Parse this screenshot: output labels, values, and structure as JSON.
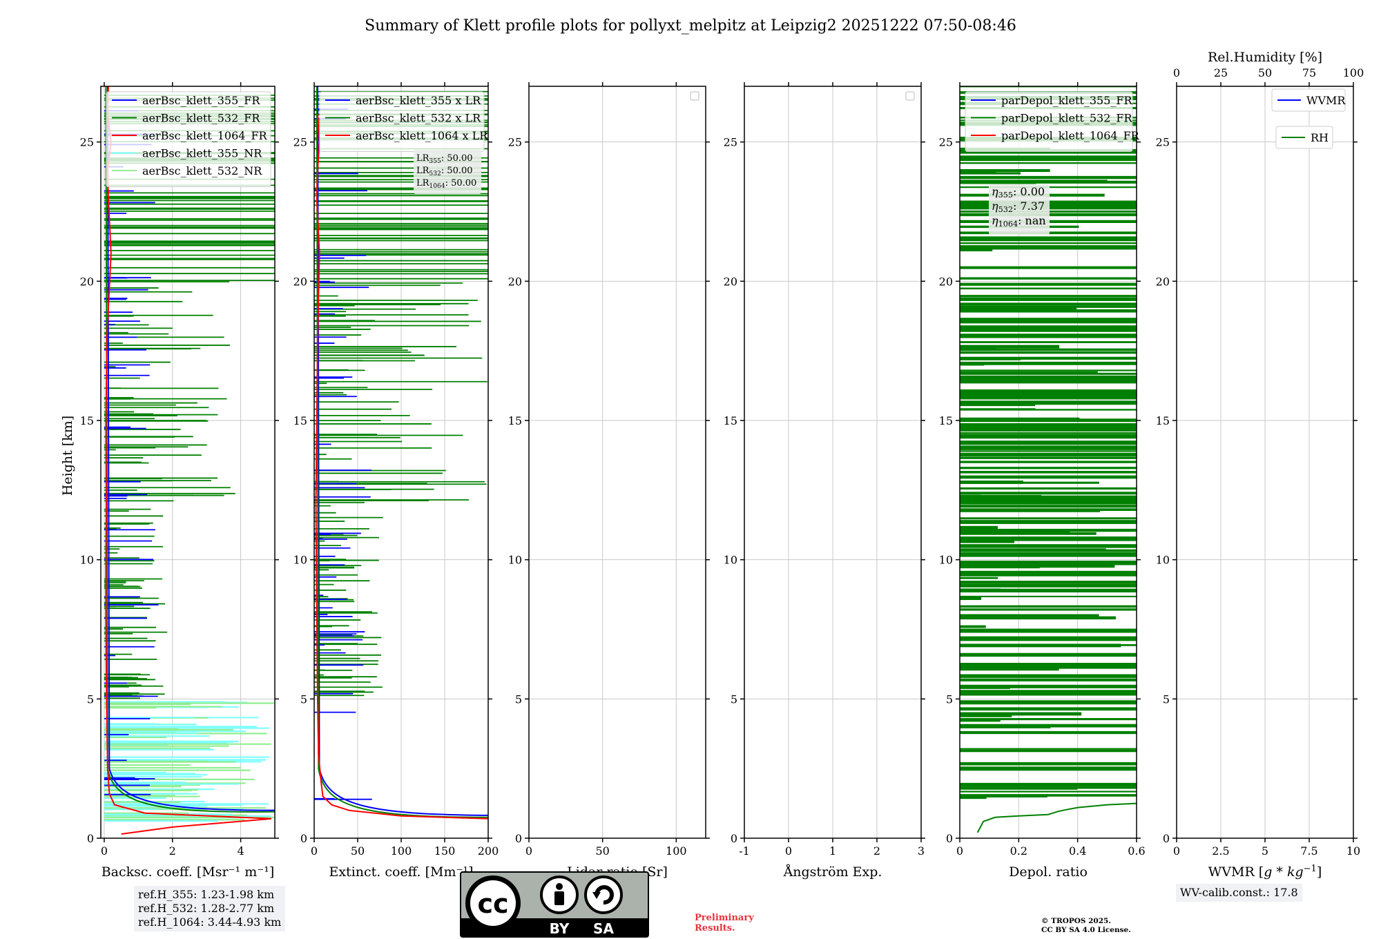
{
  "title": "Summary of Klett profile plots for pollyxt_melpitz at Leipzig2 20251222 07:50-08:46",
  "colors": {
    "blue": "#0000ff",
    "green": "#008000",
    "red": "#ff0000",
    "lightgreen": "#90ee90",
    "cyan": "#80ffff",
    "grid": "#c8c8c8",
    "prelim": "#e8323c"
  },
  "chart_data": [
    {
      "id": "backscatter",
      "type": "line",
      "xlabel": "Backsc. coeff. [Msr⁻¹ m⁻¹]",
      "ylabel": "Height [km]",
      "xlim": [
        -0.1,
        5
      ],
      "ylim": [
        0,
        27
      ],
      "xticks": [
        0,
        2,
        4
      ],
      "yticks": [
        0,
        5,
        10,
        15,
        20,
        25
      ],
      "grid": true,
      "legend": {
        "placement": "top-right",
        "entries": [
          {
            "label": "aerBsc_klett_355_FR",
            "color": "#0000ff"
          },
          {
            "label": "aerBsc_klett_532_FR",
            "color": "#008000"
          },
          {
            "label": "aerBsc_klett_1064_FR",
            "color": "#ff0000"
          },
          {
            "label": "aerBsc_klett_355_NR",
            "color": "#80ffff"
          },
          {
            "label": "aerBsc_klett_532_NR",
            "color": "#90ee90"
          }
        ]
      },
      "series": [
        {
          "name": "aerBsc_klett_1064_FR",
          "x": [
            0.5,
            2.0,
            4.9,
            1.2,
            0.3,
            0.15,
            0.1,
            0.08,
            0.06,
            0.05,
            0.05,
            0.06,
            0.05,
            0.08,
            0.2,
            0.12,
            0.1,
            0.2,
            0.1,
            0.12
          ],
          "y": [
            0.15,
            0.4,
            0.7,
            0.9,
            1.2,
            1.6,
            2.5,
            4,
            6,
            8,
            10,
            12,
            15,
            18,
            21,
            23,
            24,
            25,
            26,
            27
          ]
        }
      ]
    },
    {
      "id": "extinction",
      "type": "line",
      "xlabel": "Extinct. coeff. [Mm⁻¹]",
      "ylabel": "",
      "xlim": [
        0,
        200
      ],
      "ylim": [
        0,
        27
      ],
      "xticks": [
        0,
        50,
        100,
        150,
        200
      ],
      "yticks": [
        0,
        5,
        10,
        15,
        20,
        25
      ],
      "grid": true,
      "legend": {
        "placement": "top-right",
        "entries": [
          {
            "label": "aerBsc_klett_355 x LR",
            "color": "#0000ff"
          },
          {
            "label": "aerBsc_klett_532 x LR",
            "color": "#008000"
          },
          {
            "label": "aerBsc_klett_1064 x LR",
            "color": "#ff0000"
          }
        ]
      },
      "annotation": [
        {
          "symbol": "LR",
          "sub": "355",
          "value": ": 50.00"
        },
        {
          "symbol": "LR",
          "sub": "532",
          "value": ": 50.00"
        },
        {
          "symbol": "LR",
          "sub": "1064",
          "value": ": 50.00"
        }
      ],
      "series": [
        {
          "name": "aerBsc_klett_1064 x LR",
          "x": [
            200,
            100,
            40,
            20,
            10,
            8,
            5,
            4,
            3,
            2,
            3,
            4,
            6,
            3,
            4,
            6,
            4
          ],
          "y": [
            0.7,
            0.8,
            1.0,
            1.2,
            1.5,
            2.0,
            3.0,
            5.0,
            8.0,
            12,
            15,
            18,
            21,
            23,
            24,
            25,
            26
          ]
        }
      ]
    },
    {
      "id": "lidar-ratio",
      "type": "line",
      "xlabel": "Lidar ratio [Sr]",
      "ylabel": "",
      "xlim": [
        0,
        120
      ],
      "ylim": [
        0,
        27
      ],
      "xticks": [
        0,
        50,
        100
      ],
      "yticks": [
        0,
        5,
        10,
        15,
        20,
        25
      ],
      "grid": true,
      "legend": {
        "placement": "top-right",
        "entries": []
      },
      "series": []
    },
    {
      "id": "angstrom",
      "type": "line",
      "xlabel": "Ångström Exp.",
      "ylabel": "",
      "xlim": [
        -1,
        3
      ],
      "ylim": [
        0,
        27
      ],
      "xticks": [
        -1,
        0,
        1,
        2,
        3
      ],
      "yticks": [
        0,
        5,
        10,
        15,
        20,
        25
      ],
      "grid": true,
      "legend": {
        "placement": "top-right",
        "entries": []
      },
      "series": []
    },
    {
      "id": "depol",
      "type": "line",
      "xlabel": "Depol. ratio",
      "ylabel": "",
      "xlim": [
        0,
        0.6
      ],
      "ylim": [
        0,
        27
      ],
      "xticks": [
        0.0,
        0.2,
        0.4,
        0.6
      ],
      "yticks": [
        0,
        5,
        10,
        15,
        20,
        25
      ],
      "grid": true,
      "legend": {
        "placement": "top-right",
        "entries": [
          {
            "label": "parDepol_klett_355_FR",
            "color": "#0000ff"
          },
          {
            "label": "parDepol_klett_532_FR",
            "color": "#008000"
          },
          {
            "label": "parDepol_klett_1064_FR",
            "color": "#ff0000"
          }
        ]
      },
      "annotation": [
        {
          "symbol": "η",
          "sub": "355",
          "value": ": 0.00"
        },
        {
          "symbol": "η",
          "sub": "532",
          "value": ": 7.37"
        },
        {
          "symbol": "η",
          "sub": "1064",
          "value": ": nan"
        }
      ],
      "series": [
        {
          "name": "parDepol_klett_532_FR",
          "x": [
            0.06,
            0.07,
            0.08,
            0.12,
            0.2,
            0.3,
            0.33,
            0.35,
            0.4,
            0.5,
            0.6
          ],
          "y": [
            0.2,
            0.4,
            0.6,
            0.75,
            0.8,
            0.85,
            0.95,
            1.0,
            1.1,
            1.2,
            1.25
          ]
        }
      ]
    },
    {
      "id": "wvmr",
      "type": "line",
      "xlabel": "WVMR [",
      "xlabel_math": "g * kg",
      "xlabel_sup": "−1",
      "xlabel_end": "]",
      "x2label": "Rel.Humidity [%]",
      "x2ticks": [
        0,
        25,
        50,
        75,
        100
      ],
      "x2lim": [
        0,
        100
      ],
      "ylabel": "",
      "xlim": [
        0,
        10
      ],
      "ylim": [
        0,
        27
      ],
      "xticks": [
        0.0,
        2.5,
        5.0,
        7.5,
        10.0
      ],
      "yticks": [
        0,
        5,
        10,
        15,
        20,
        25
      ],
      "grid": true,
      "legend": {
        "placement": "top-right",
        "entries": [
          {
            "label": "WVMR",
            "color": "#0000ff"
          },
          {
            "label": "RH",
            "color": "#008000"
          }
        ]
      },
      "series": []
    }
  ],
  "footer": {
    "ref_lines": [
      "ref.H_355: 1.23-1.98 km",
      "ref.H_532: 1.28-2.77 km",
      "ref.H_1064: 3.44-4.93 km"
    ],
    "cc": {
      "cc": "cc",
      "by": "BY",
      "sa": "SA"
    },
    "preliminary": [
      "Preliminary",
      "Results."
    ],
    "tropos": [
      "© TROPOS 2025.",
      "CC BY SA 4.0 License."
    ],
    "wv_calib": "WV-calib.const.: 17.8"
  }
}
